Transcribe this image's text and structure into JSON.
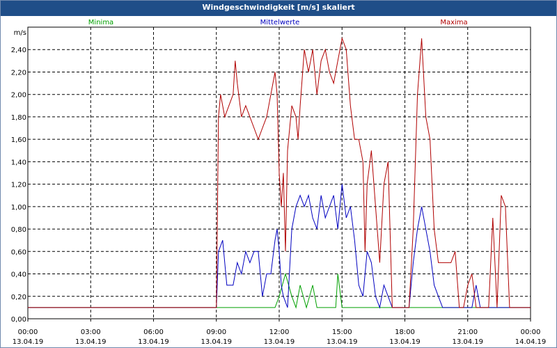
{
  "title": "Windgeschwindigkeit [m/s] skaliert",
  "chart_data": {
    "type": "line",
    "title": "Windgeschwindigkeit [m/s] skaliert",
    "ylabel": "m/s",
    "ylim": [
      0,
      2.6
    ],
    "yticks": [
      "0,00",
      "0,20",
      "0,40",
      "0,60",
      "0,80",
      "1,00",
      "1,20",
      "1,40",
      "1,60",
      "1,80",
      "2,00",
      "2,20",
      "2,40"
    ],
    "xlim_hours": [
      0,
      24
    ],
    "xticks": [
      {
        "time": "00:00",
        "date": "13.04.19"
      },
      {
        "time": "03:00",
        "date": "13.04.19"
      },
      {
        "time": "06:00",
        "date": "13.04.19"
      },
      {
        "time": "09:00",
        "date": "13.04.19"
      },
      {
        "time": "12:00",
        "date": "13.04.19"
      },
      {
        "time": "15:00",
        "date": "13.04.19"
      },
      {
        "time": "18:00",
        "date": "13.04.19"
      },
      {
        "time": "21:00",
        "date": "13.04.19"
      },
      {
        "time": "00:00",
        "date": "14.04.19"
      }
    ],
    "legend_position": "top",
    "grid": true,
    "series": [
      {
        "name": "Minima",
        "color": "#00a000",
        "points": [
          [
            0,
            0.1
          ],
          [
            9.0,
            0.1
          ],
          [
            11.8,
            0.1
          ],
          [
            12.0,
            0.2
          ],
          [
            12.3,
            0.4
          ],
          [
            12.6,
            0.2
          ],
          [
            12.8,
            0.1
          ],
          [
            13.0,
            0.3
          ],
          [
            13.3,
            0.1
          ],
          [
            13.6,
            0.3
          ],
          [
            13.8,
            0.1
          ],
          [
            14.7,
            0.1
          ],
          [
            14.8,
            0.4
          ],
          [
            15.0,
            0.1
          ],
          [
            18.2,
            0.1
          ],
          [
            20.8,
            0.1
          ],
          [
            21.0,
            0.1
          ],
          [
            24,
            0.1
          ]
        ]
      },
      {
        "name": "Mittelwerte",
        "color": "#0000c0",
        "points": [
          [
            0,
            0.1
          ],
          [
            9.0,
            0.1
          ],
          [
            9.1,
            0.6
          ],
          [
            9.3,
            0.7
          ],
          [
            9.4,
            0.5
          ],
          [
            9.5,
            0.3
          ],
          [
            9.8,
            0.3
          ],
          [
            10.0,
            0.5
          ],
          [
            10.2,
            0.4
          ],
          [
            10.4,
            0.6
          ],
          [
            10.6,
            0.5
          ],
          [
            10.8,
            0.6
          ],
          [
            11.0,
            0.6
          ],
          [
            11.2,
            0.2
          ],
          [
            11.4,
            0.4
          ],
          [
            11.6,
            0.4
          ],
          [
            11.8,
            0.7
          ],
          [
            11.9,
            0.8
          ],
          [
            12.0,
            0.6
          ],
          [
            12.1,
            0.3
          ],
          [
            12.2,
            0.2
          ],
          [
            12.4,
            0.1
          ],
          [
            12.6,
            0.8
          ],
          [
            12.8,
            1.0
          ],
          [
            13.0,
            1.1
          ],
          [
            13.2,
            1.0
          ],
          [
            13.4,
            1.1
          ],
          [
            13.6,
            0.9
          ],
          [
            13.8,
            0.8
          ],
          [
            14.0,
            1.1
          ],
          [
            14.2,
            0.9
          ],
          [
            14.4,
            1.0
          ],
          [
            14.6,
            1.1
          ],
          [
            14.8,
            0.8
          ],
          [
            15.0,
            1.2
          ],
          [
            15.2,
            0.9
          ],
          [
            15.4,
            1.0
          ],
          [
            15.6,
            0.7
          ],
          [
            15.8,
            0.3
          ],
          [
            16.0,
            0.2
          ],
          [
            16.2,
            0.6
          ],
          [
            16.4,
            0.5
          ],
          [
            16.6,
            0.2
          ],
          [
            16.8,
            0.1
          ],
          [
            17.0,
            0.3
          ],
          [
            17.2,
            0.2
          ],
          [
            17.4,
            0.1
          ],
          [
            18.2,
            0.1
          ],
          [
            18.4,
            0.5
          ],
          [
            18.6,
            0.8
          ],
          [
            18.8,
            1.0
          ],
          [
            19.0,
            0.8
          ],
          [
            19.2,
            0.6
          ],
          [
            19.4,
            0.3
          ],
          [
            19.6,
            0.2
          ],
          [
            19.8,
            0.1
          ],
          [
            20.8,
            0.1
          ],
          [
            21.0,
            0.1
          ],
          [
            21.2,
            0.1
          ],
          [
            21.4,
            0.3
          ],
          [
            21.6,
            0.1
          ],
          [
            24,
            0.1
          ]
        ]
      },
      {
        "name": "Maxima",
        "color": "#b00000",
        "points": [
          [
            0,
            0.1
          ],
          [
            9.0,
            0.1
          ],
          [
            9.1,
            1.8
          ],
          [
            9.2,
            2.0
          ],
          [
            9.4,
            1.8
          ],
          [
            9.6,
            1.9
          ],
          [
            9.8,
            2.0
          ],
          [
            9.9,
            2.3
          ],
          [
            10.0,
            2.1
          ],
          [
            10.2,
            1.8
          ],
          [
            10.4,
            1.9
          ],
          [
            10.6,
            1.8
          ],
          [
            10.8,
            1.7
          ],
          [
            11.0,
            1.6
          ],
          [
            11.2,
            1.7
          ],
          [
            11.4,
            1.8
          ],
          [
            11.6,
            2.0
          ],
          [
            11.8,
            2.2
          ],
          [
            11.9,
            2.0
          ],
          [
            12.0,
            1.3
          ],
          [
            12.1,
            1.0
          ],
          [
            12.2,
            1.3
          ],
          [
            12.3,
            0.6
          ],
          [
            12.4,
            1.5
          ],
          [
            12.6,
            1.9
          ],
          [
            12.8,
            1.8
          ],
          [
            12.9,
            1.6
          ],
          [
            13.0,
            1.9
          ],
          [
            13.2,
            2.4
          ],
          [
            13.4,
            2.2
          ],
          [
            13.6,
            2.4
          ],
          [
            13.8,
            2.0
          ],
          [
            14.0,
            2.3
          ],
          [
            14.2,
            2.4
          ],
          [
            14.4,
            2.2
          ],
          [
            14.6,
            2.1
          ],
          [
            14.8,
            2.3
          ],
          [
            15.0,
            2.5
          ],
          [
            15.2,
            2.4
          ],
          [
            15.4,
            1.9
          ],
          [
            15.6,
            1.6
          ],
          [
            15.8,
            1.6
          ],
          [
            16.0,
            1.4
          ],
          [
            16.1,
            0.6
          ],
          [
            16.2,
            1.2
          ],
          [
            16.4,
            1.5
          ],
          [
            16.6,
            1.0
          ],
          [
            16.8,
            0.5
          ],
          [
            17.0,
            1.2
          ],
          [
            17.2,
            1.4
          ],
          [
            17.4,
            0.1
          ],
          [
            18.2,
            0.1
          ],
          [
            18.4,
            0.8
          ],
          [
            18.6,
            2.0
          ],
          [
            18.8,
            2.5
          ],
          [
            19.0,
            1.8
          ],
          [
            19.2,
            1.6
          ],
          [
            19.4,
            0.8
          ],
          [
            19.6,
            0.5
          ],
          [
            20.0,
            0.5
          ],
          [
            20.2,
            0.5
          ],
          [
            20.4,
            0.6
          ],
          [
            20.6,
            0.1
          ],
          [
            20.8,
            0.1
          ],
          [
            21.0,
            0.3
          ],
          [
            21.2,
            0.4
          ],
          [
            21.4,
            0.1
          ],
          [
            21.6,
            0.1
          ],
          [
            22.0,
            0.1
          ],
          [
            22.2,
            0.9
          ],
          [
            22.4,
            0.1
          ],
          [
            22.6,
            1.1
          ],
          [
            22.8,
            1.0
          ],
          [
            23.0,
            0.1
          ],
          [
            24,
            0.1
          ]
        ]
      }
    ]
  }
}
